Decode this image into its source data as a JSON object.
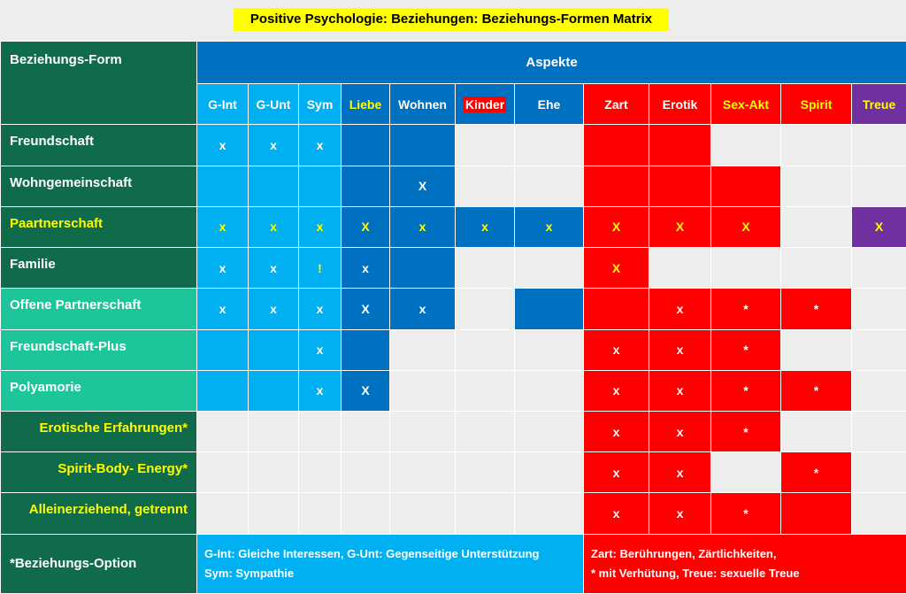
{
  "title": "Positive Psychologie: Beziehungen: Beziehungs-Formen Matrix",
  "header": {
    "corner_label": "Beziehungs-Form",
    "group_label": "Aspekte",
    "columns": [
      {
        "label": "G-Int",
        "bg": "#00b0f0",
        "fg": "#ffffff"
      },
      {
        "label": "G-Unt",
        "bg": "#00b0f0",
        "fg": "#ffffff"
      },
      {
        "label": "Sym",
        "bg": "#00b0f0",
        "fg": "#ffffff"
      },
      {
        "label": "Liebe",
        "bg": "#0070c0",
        "fg": "#ffff00"
      },
      {
        "label": "Wohnen",
        "bg": "#0070c0",
        "fg": "#ffffff"
      },
      {
        "label": "Kinder",
        "bg": "#0070c0",
        "fg": "#ffffff",
        "highlight": "#ff0000"
      },
      {
        "label": "Ehe",
        "bg": "#0070c0",
        "fg": "#ffffff"
      },
      {
        "label": "Zart",
        "bg": "#ff0000",
        "fg": "#ffffff"
      },
      {
        "label": "Erotik",
        "bg": "#ff0000",
        "fg": "#ffffff"
      },
      {
        "label": "Sex-Akt",
        "bg": "#ff0000",
        "fg": "#ffff00"
      },
      {
        "label": "Spirit",
        "bg": "#ff0000",
        "fg": "#ffff00"
      },
      {
        "label": "Treue",
        "bg": "#7030a0",
        "fg": "#ffff00"
      }
    ]
  },
  "rows": [
    {
      "label": "Freundschaft",
      "label_bg": "#0f6b4a",
      "label_fg": "#ffffff",
      "label_align": "left",
      "cells": [
        {
          "v": "x",
          "bg": "#00b0f0"
        },
        {
          "v": "x",
          "bg": "#00b0f0"
        },
        {
          "v": "x",
          "bg": "#00b0f0"
        },
        {
          "v": "",
          "bg": "#0070c0"
        },
        {
          "v": "",
          "bg": "#0070c0"
        },
        {
          "v": "",
          "bg": "#ededed"
        },
        {
          "v": "",
          "bg": "#ededed"
        },
        {
          "v": "",
          "bg": "#ff0000"
        },
        {
          "v": "",
          "bg": "#ff0000"
        },
        {
          "v": "",
          "bg": "#ededed"
        },
        {
          "v": "",
          "bg": "#ededed"
        },
        {
          "v": "",
          "bg": "#ededed"
        }
      ]
    },
    {
      "label": "Wohngemeinschaft",
      "label_bg": "#0f6b4a",
      "label_fg": "#ffffff",
      "label_align": "left",
      "cells": [
        {
          "v": "",
          "bg": "#00b0f0"
        },
        {
          "v": "",
          "bg": "#00b0f0"
        },
        {
          "v": "",
          "bg": "#00b0f0"
        },
        {
          "v": "",
          "bg": "#0070c0"
        },
        {
          "v": "X",
          "bg": "#0070c0"
        },
        {
          "v": "",
          "bg": "#ededed"
        },
        {
          "v": "",
          "bg": "#ededed"
        },
        {
          "v": "",
          "bg": "#ff0000"
        },
        {
          "v": "",
          "bg": "#ff0000"
        },
        {
          "v": "",
          "bg": "#ff0000"
        },
        {
          "v": "",
          "bg": "#ededed"
        },
        {
          "v": "",
          "bg": "#ededed"
        }
      ]
    },
    {
      "label": "Paartnerschaft",
      "label_bg": "#0f6b4a",
      "label_fg": "#ffff00",
      "label_align": "left",
      "cells": [
        {
          "v": "x",
          "bg": "#00b0f0",
          "fg": "#ffff00"
        },
        {
          "v": "x",
          "bg": "#00b0f0",
          "fg": "#ffff00"
        },
        {
          "v": "x",
          "bg": "#00b0f0",
          "fg": "#ffff00"
        },
        {
          "v": "X",
          "bg": "#0070c0",
          "fg": "#ffff00"
        },
        {
          "v": "x",
          "bg": "#0070c0",
          "fg": "#ffff00"
        },
        {
          "v": "x",
          "bg": "#0070c0",
          "fg": "#ffff00"
        },
        {
          "v": "x",
          "bg": "#0070c0",
          "fg": "#ffff00"
        },
        {
          "v": "X",
          "bg": "#ff0000",
          "fg": "#ffff00"
        },
        {
          "v": "X",
          "bg": "#ff0000",
          "fg": "#ffff00"
        },
        {
          "v": "X",
          "bg": "#ff0000",
          "fg": "#ffff00"
        },
        {
          "v": "",
          "bg": "#ededed"
        },
        {
          "v": "X",
          "bg": "#7030a0",
          "fg": "#ffff00"
        }
      ]
    },
    {
      "label": "Familie",
      "label_bg": "#0f6b4a",
      "label_fg": "#ffffff",
      "label_align": "left",
      "cells": [
        {
          "v": "x",
          "bg": "#00b0f0"
        },
        {
          "v": "x",
          "bg": "#00b0f0"
        },
        {
          "v": "!",
          "bg": "#00b0f0",
          "fg": "#ffff00"
        },
        {
          "v": "x",
          "bg": "#0070c0"
        },
        {
          "v": "",
          "bg": "#0070c0"
        },
        {
          "v": "",
          "bg": "#ededed"
        },
        {
          "v": "",
          "bg": "#ededed"
        },
        {
          "v": "X",
          "bg": "#ff0000",
          "fg": "#ffff00"
        },
        {
          "v": "",
          "bg": "#ededed"
        },
        {
          "v": "",
          "bg": "#ededed"
        },
        {
          "v": "",
          "bg": "#ededed"
        },
        {
          "v": "",
          "bg": "#ededed"
        }
      ]
    },
    {
      "label": "Offene Partnerschaft",
      "label_bg": "#1cc59a",
      "label_fg": "#ffffff",
      "label_align": "left",
      "cells": [
        {
          "v": "x",
          "bg": "#00b0f0"
        },
        {
          "v": "x",
          "bg": "#00b0f0"
        },
        {
          "v": "x",
          "bg": "#00b0f0"
        },
        {
          "v": "X",
          "bg": "#0070c0"
        },
        {
          "v": "x",
          "bg": "#0070c0"
        },
        {
          "v": "",
          "bg": "#ededed"
        },
        {
          "v": "",
          "bg": "#0070c0"
        },
        {
          "v": "",
          "bg": "#ff0000"
        },
        {
          "v": "x",
          "bg": "#ff0000"
        },
        {
          "v": "*",
          "bg": "#ff0000"
        },
        {
          "v": "*",
          "bg": "#ff0000"
        },
        {
          "v": "",
          "bg": "#ededed"
        }
      ]
    },
    {
      "label": "Freundschaft-Plus",
      "label_bg": "#1cc59a",
      "label_fg": "#ffffff",
      "label_align": "left",
      "cells": [
        {
          "v": "",
          "bg": "#00b0f0"
        },
        {
          "v": "",
          "bg": "#00b0f0"
        },
        {
          "v": "x",
          "bg": "#00b0f0"
        },
        {
          "v": "",
          "bg": "#0070c0"
        },
        {
          "v": "",
          "bg": "#ededed"
        },
        {
          "v": "",
          "bg": "#ededed"
        },
        {
          "v": "",
          "bg": "#ededed"
        },
        {
          "v": "x",
          "bg": "#ff0000"
        },
        {
          "v": "x",
          "bg": "#ff0000"
        },
        {
          "v": "*",
          "bg": "#ff0000"
        },
        {
          "v": "",
          "bg": "#ededed"
        },
        {
          "v": "",
          "bg": "#ededed"
        }
      ]
    },
    {
      "label": "Polyamorie",
      "label_bg": "#1cc59a",
      "label_fg": "#ffffff",
      "label_align": "left",
      "cells": [
        {
          "v": "",
          "bg": "#00b0f0"
        },
        {
          "v": "",
          "bg": "#00b0f0"
        },
        {
          "v": "x",
          "bg": "#00b0f0"
        },
        {
          "v": "X",
          "bg": "#0070c0"
        },
        {
          "v": "",
          "bg": "#ededed"
        },
        {
          "v": "",
          "bg": "#ededed"
        },
        {
          "v": "",
          "bg": "#ededed"
        },
        {
          "v": "x",
          "bg": "#ff0000"
        },
        {
          "v": "x",
          "bg": "#ff0000"
        },
        {
          "v": "*",
          "bg": "#ff0000"
        },
        {
          "v": "*",
          "bg": "#ff0000"
        },
        {
          "v": "",
          "bg": "#ededed"
        }
      ]
    },
    {
      "label": "Erotische Erfahrungen*",
      "label_bg": "#0f6b4a",
      "label_fg": "#ffff00",
      "label_align": "right",
      "cells": [
        {
          "v": "",
          "bg": "#ededed"
        },
        {
          "v": "",
          "bg": "#ededed"
        },
        {
          "v": "",
          "bg": "#ededed"
        },
        {
          "v": "",
          "bg": "#ededed"
        },
        {
          "v": "",
          "bg": "#ededed"
        },
        {
          "v": "",
          "bg": "#ededed"
        },
        {
          "v": "",
          "bg": "#ededed"
        },
        {
          "v": "x",
          "bg": "#ff0000"
        },
        {
          "v": "x",
          "bg": "#ff0000"
        },
        {
          "v": "*",
          "bg": "#ff0000"
        },
        {
          "v": "",
          "bg": "#ededed"
        },
        {
          "v": "",
          "bg": "#ededed"
        }
      ]
    },
    {
      "label": "Spirit-Body- Energy*",
      "label_bg": "#0f6b4a",
      "label_fg": "#ffff00",
      "label_align": "right",
      "cells": [
        {
          "v": "",
          "bg": "#ededed"
        },
        {
          "v": "",
          "bg": "#ededed"
        },
        {
          "v": "",
          "bg": "#ededed"
        },
        {
          "v": "",
          "bg": "#ededed"
        },
        {
          "v": "",
          "bg": "#ededed"
        },
        {
          "v": "",
          "bg": "#ededed"
        },
        {
          "v": "",
          "bg": "#ededed"
        },
        {
          "v": "x",
          "bg": "#ff0000"
        },
        {
          "v": "x",
          "bg": "#ff0000"
        },
        {
          "v": "",
          "bg": "#ededed"
        },
        {
          "v": "*",
          "bg": "#ff0000"
        },
        {
          "v": "",
          "bg": "#ededed"
        }
      ]
    },
    {
      "label": "Alleinerziehend, getrennt",
      "label_bg": "#0f6b4a",
      "label_fg": "#ffff00",
      "label_align": "right",
      "cells": [
        {
          "v": "",
          "bg": "#ededed"
        },
        {
          "v": "",
          "bg": "#ededed"
        },
        {
          "v": "",
          "bg": "#ededed"
        },
        {
          "v": "",
          "bg": "#ededed"
        },
        {
          "v": "",
          "bg": "#ededed"
        },
        {
          "v": "",
          "bg": "#ededed"
        },
        {
          "v": "",
          "bg": "#ededed"
        },
        {
          "v": "x",
          "bg": "#ff0000"
        },
        {
          "v": "x",
          "bg": "#ff0000"
        },
        {
          "v": "*",
          "bg": "#ff0000"
        },
        {
          "v": "",
          "bg": "#ff0000"
        },
        {
          "v": "",
          "bg": "#ededed"
        }
      ]
    }
  ],
  "footer": {
    "label": "*Beziehungs-Option",
    "label_bg": "#0f6b4a",
    "blue_lines": [
      "G-Int: Gleiche Interessen, G-Unt: Gegenseitige  Unterstützung",
      "Sym: Sympathie"
    ],
    "blue_bg": "#00b0f0",
    "red_lines": [
      "Zart: Berührungen, Zärtlichkeiten,",
      "* mit Verhütung, Treue: sexuelle Treue"
    ],
    "red_bg": "#ff0000"
  }
}
